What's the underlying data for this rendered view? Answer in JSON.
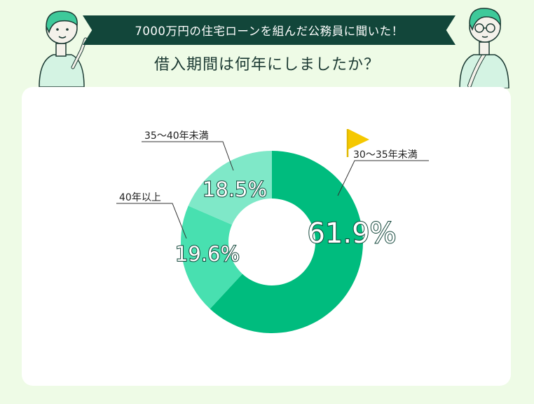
{
  "header": {
    "banner_text": "7000万円の住宅ローンを組んだ公務員に聞いた！",
    "question": "借入期間は何年にしましたか？"
  },
  "icons": [
    "person-pointing-icon",
    "person-thinking-icon",
    "flag-icon"
  ],
  "colors": {
    "background": "#eefbe6",
    "banner": "#12463a",
    "slice_30_35": "#00bc7e",
    "slice_40_plus": "#48e0b0",
    "slice_35_40": "#7fe8c8",
    "flag": "#f5c800"
  },
  "chart_data": {
    "type": "pie",
    "donut": true,
    "categories": [
      "30〜35年未満",
      "40年以上",
      "35〜40年未満"
    ],
    "values": [
      61.9,
      19.6,
      18.5
    ],
    "value_labels": [
      "61.9%",
      "19.6%",
      "18.5%"
    ],
    "highlight": "30〜35年未満"
  }
}
